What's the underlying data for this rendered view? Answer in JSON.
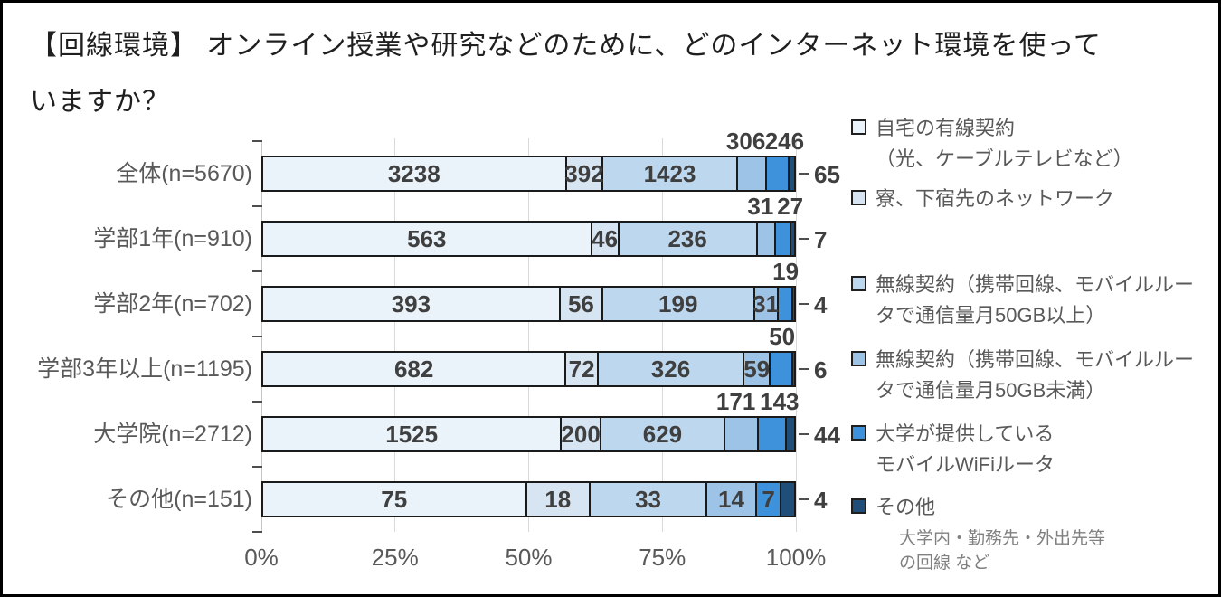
{
  "title": "【回線環境】 オンライン授業や研究などのために、どのインターネット環境を使っていますか？",
  "title_lines": [
    "【回線環境】 オンライン授業や研究などのために、どのインターネット環境を使って",
    "いますか？"
  ],
  "chart_data": {
    "type": "bar",
    "subtype": "100%-stacked-horizontal",
    "categories": [
      "全体(n=5670)",
      "学部1年(n=910)",
      "学部2年(n=702)",
      "学部3年以上(n=1195)",
      "大学院(n=2712)",
      "その他(n=151)"
    ],
    "totals": [
      5670,
      910,
      702,
      1195,
      2712,
      151
    ],
    "series": [
      {
        "name": "自宅の有線契約（光、ケーブルテレビなど）",
        "color": "#EAF2FA",
        "values": [
          3238,
          563,
          393,
          682,
          1525,
          75
        ]
      },
      {
        "name": "寮、下宿先のネットワーク",
        "color": "#D7E5F3",
        "values": [
          392,
          46,
          56,
          72,
          200,
          18
        ]
      },
      {
        "name": "無線契約（携帯回線、モバイルルータで通信量月50GB以上）",
        "color": "#BDD7EE",
        "values": [
          1423,
          236,
          199,
          326,
          629,
          33
        ]
      },
      {
        "name": "無線契約（携帯回線、モバイルルータで通信量月50GB未満）",
        "color": "#9DC3E6",
        "values": [
          306,
          31,
          31,
          59,
          171,
          14
        ]
      },
      {
        "name": "大学が提供しているモバイルWiFiルータ",
        "color": "#3E92DC",
        "values": [
          246,
          27,
          19,
          50,
          143,
          7
        ]
      },
      {
        "name": "その他",
        "color": "#1F4E79",
        "values": [
          65,
          7,
          4,
          6,
          44,
          4
        ]
      }
    ],
    "label_positions": [
      [
        "in",
        "in",
        "in",
        "above",
        "above",
        "out"
      ],
      [
        "in",
        "in",
        "in",
        "above",
        "above",
        "out"
      ],
      [
        "in",
        "in",
        "in",
        "in",
        "above",
        "out"
      ],
      [
        "in",
        "in",
        "in",
        "in",
        "above",
        "out"
      ],
      [
        "in",
        "in",
        "in",
        "above",
        "above",
        "out"
      ],
      [
        "in",
        "in",
        "in",
        "in",
        "in",
        "out"
      ]
    ],
    "x_ticks": [
      "0%",
      "25%",
      "50%",
      "75%",
      "100%"
    ],
    "xlim": [
      0,
      100
    ],
    "grid": true,
    "legend_position": "right"
  },
  "legend": {
    "items": [
      {
        "color": "#EAF2FA",
        "lines": [
          "自宅の有線契約",
          "（光、ケーブルテレビなど）"
        ],
        "sublines": []
      },
      {
        "color": "#D7E5F3",
        "lines": [
          "寮、下宿先のネットワーク"
        ],
        "sublines": []
      },
      {
        "color": "#BDD7EE",
        "lines": [
          "無線契約（携帯回線、モバイルルー",
          "タで通信量月50GB以上）"
        ],
        "sublines": []
      },
      {
        "color": "#9DC3E6",
        "lines": [
          "無線契約（携帯回線、モバイルルー",
          "タで通信量月50GB未満）"
        ],
        "sublines": []
      },
      {
        "color": "#3E92DC",
        "lines": [
          "大学が提供している",
          "モバイルWiFiルータ"
        ],
        "sublines": []
      },
      {
        "color": "#1F4E79",
        "lines": [
          "その他"
        ],
        "sublines": [
          "大学内・勤務先・外出先等",
          "の回線 など"
        ]
      }
    ]
  },
  "colors": {
    "segment_border": "#1a1a1a",
    "data_label": "#3f3f3f",
    "axis_text": "#595959",
    "gridline": "#d9d9d9",
    "frame": "#000000"
  }
}
